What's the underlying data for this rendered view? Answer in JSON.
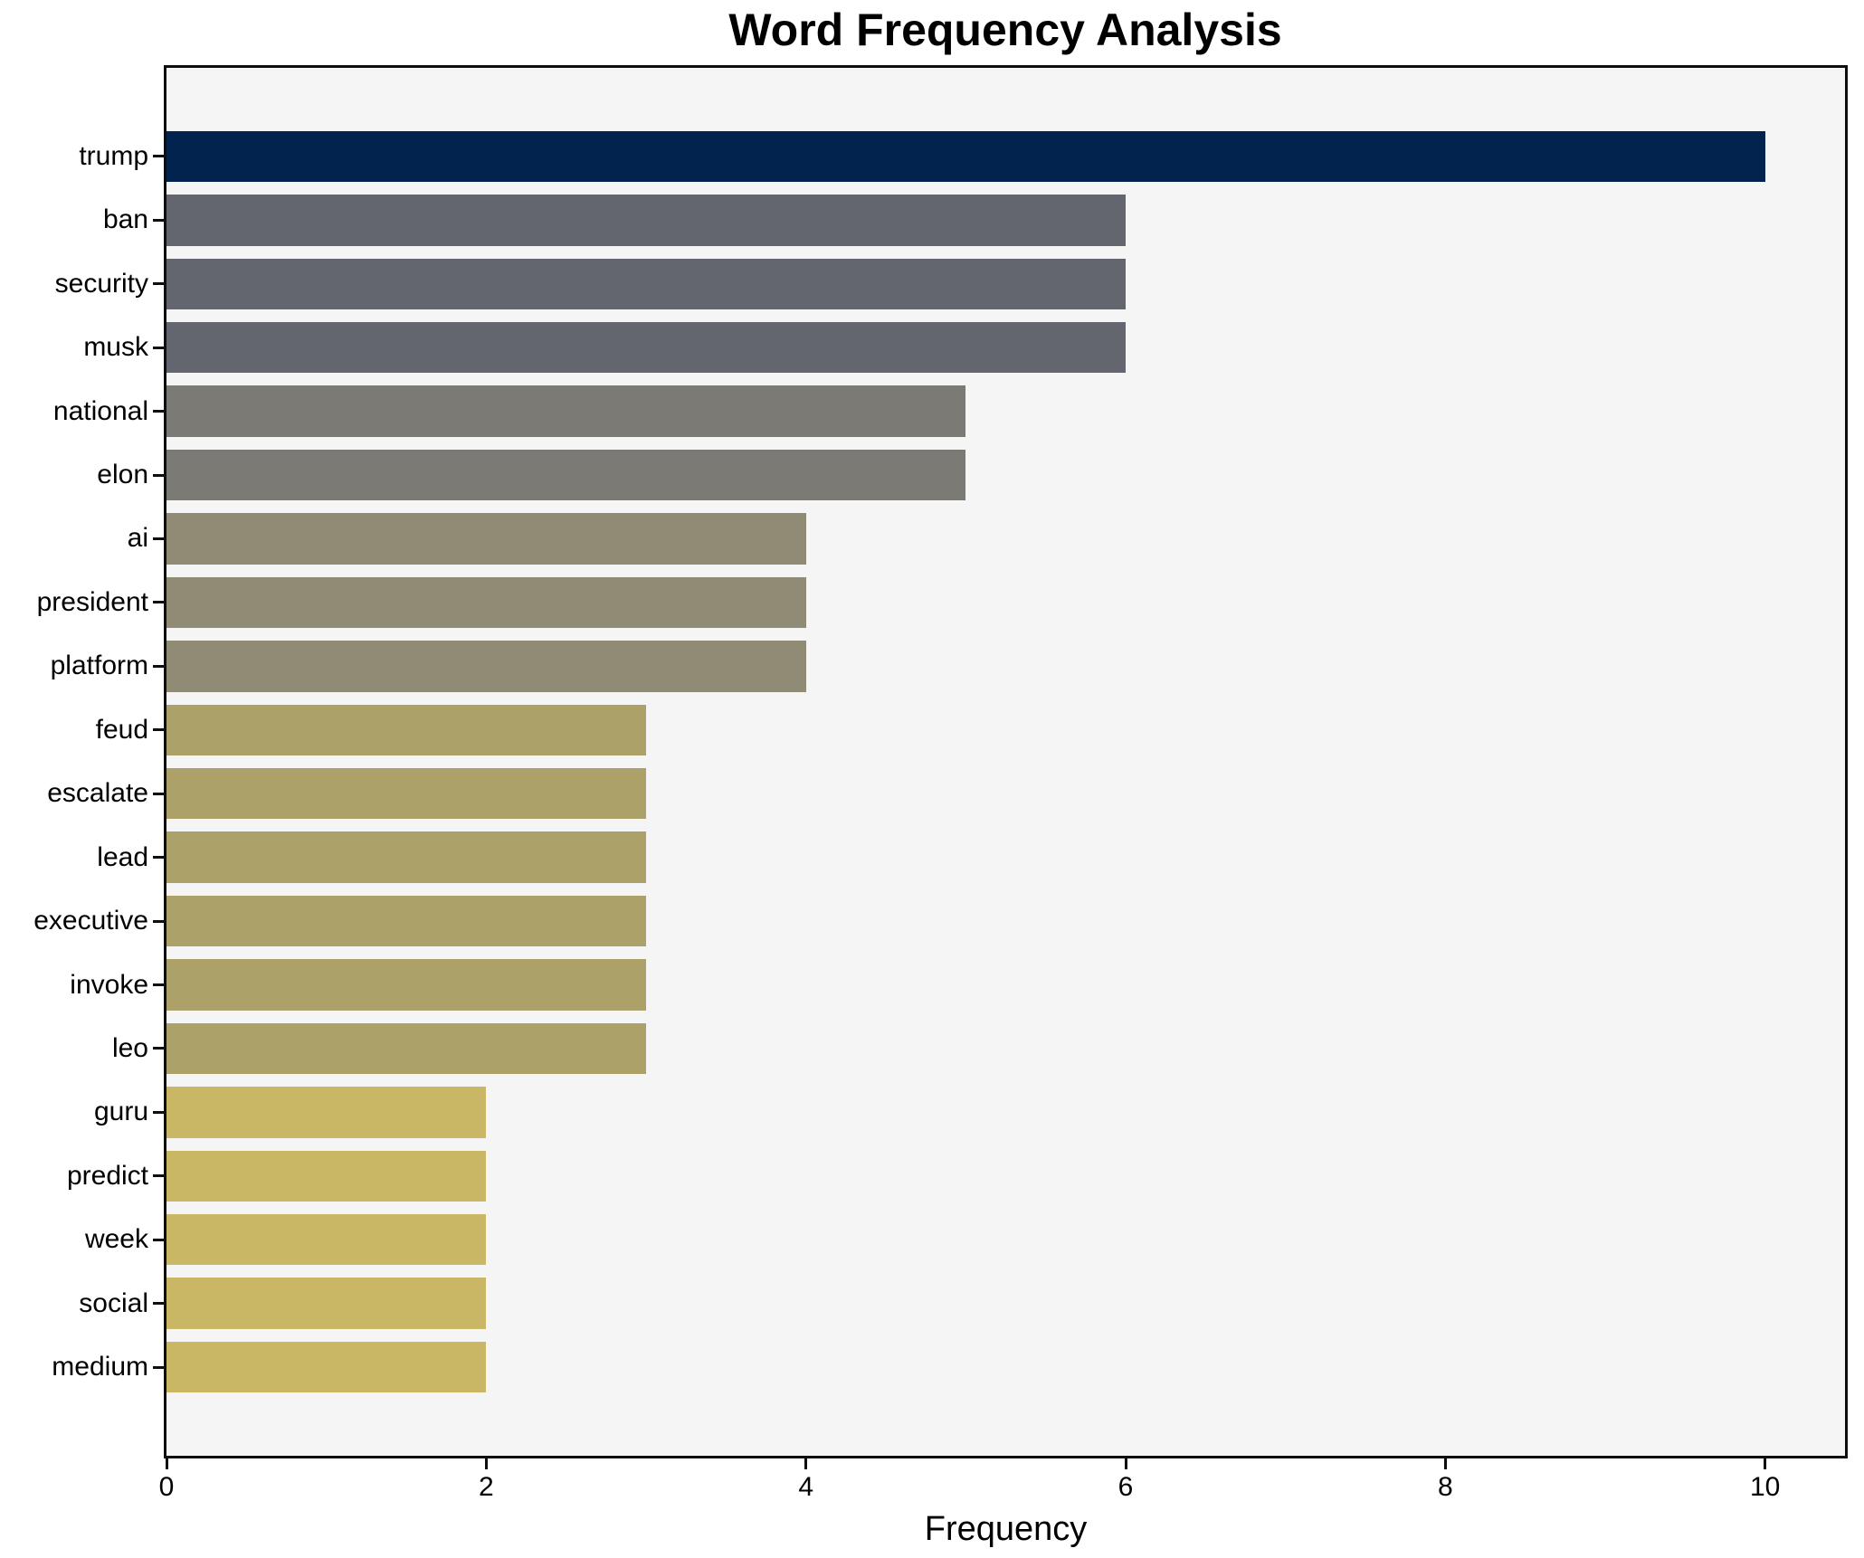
{
  "chart_data": {
    "type": "bar",
    "orientation": "horizontal",
    "title": "Word Frequency Analysis",
    "xlabel": "Frequency",
    "ylabel": "",
    "categories": [
      "trump",
      "ban",
      "security",
      "musk",
      "national",
      "elon",
      "ai",
      "president",
      "platform",
      "feud",
      "escalate",
      "lead",
      "executive",
      "invoke",
      "leo",
      "guru",
      "predict",
      "week",
      "social",
      "medium"
    ],
    "values": [
      10,
      6,
      6,
      6,
      5,
      5,
      4,
      4,
      4,
      3,
      3,
      3,
      3,
      3,
      3,
      2,
      2,
      2,
      2,
      2
    ],
    "bar_colors": [
      "#02234e",
      "#64666f",
      "#64666f",
      "#64666f",
      "#7b7a75",
      "#7b7a75",
      "#8f8b75",
      "#8f8b75",
      "#8f8b75",
      "#aba169",
      "#aba169",
      "#aba169",
      "#aba169",
      "#aba169",
      "#aba169",
      "#c9b765",
      "#c9b765",
      "#c9b765",
      "#c9b765",
      "#c9b765"
    ],
    "x_ticks": [
      0,
      2,
      4,
      6,
      8,
      10
    ],
    "xlim": [
      0,
      10.5
    ],
    "grid": false,
    "legend": null,
    "plot_background": "#f5f5f6",
    "figure_background": "#ffffff",
    "spine_color": "#0e0e0e"
  }
}
